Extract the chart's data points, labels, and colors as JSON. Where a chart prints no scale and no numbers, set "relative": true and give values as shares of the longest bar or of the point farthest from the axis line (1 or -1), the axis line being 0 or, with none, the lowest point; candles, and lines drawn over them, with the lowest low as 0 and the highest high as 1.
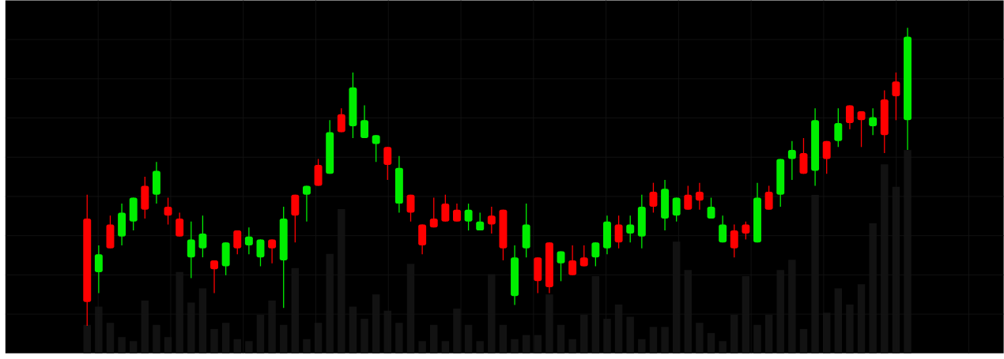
{
  "chart_data": [
    {
      "type": "candlestick",
      "relative": true,
      "grid": true,
      "categories": [
        null,
        null,
        null,
        null,
        null,
        null,
        null,
        null,
        null,
        null,
        null,
        null,
        null,
        null,
        null,
        null,
        null,
        null,
        null,
        null,
        null,
        null,
        null,
        null,
        null,
        null,
        null,
        null,
        null,
        null,
        null,
        null,
        null,
        null,
        null,
        null,
        null,
        null,
        null,
        null,
        null,
        null,
        null,
        null,
        null,
        null,
        null,
        null,
        null,
        null,
        null,
        null,
        null,
        null,
        null,
        null,
        null,
        null,
        null,
        null,
        null,
        null,
        null,
        null,
        null,
        null,
        null,
        null,
        null,
        null,
        null,
        null
      ],
      "ohlc": [
        [
          0.36,
          0.44,
          0,
          0.08
        ],
        [
          0.18,
          0.27,
          0.11,
          0.24
        ],
        [
          0.34,
          0.37,
          0.26,
          0.26
        ],
        [
          0.3,
          0.41,
          0.27,
          0.38
        ],
        [
          0.35,
          0.43,
          0.32,
          0.43
        ],
        [
          0.47,
          0.5,
          0.36,
          0.39
        ],
        [
          0.44,
          0.55,
          0.41,
          0.52
        ],
        [
          0.4,
          0.43,
          0.34,
          0.37
        ],
        [
          0.36,
          0.38,
          0.3,
          0.3
        ],
        [
          0.23,
          0.35,
          0.16,
          0.29
        ],
        [
          0.26,
          0.37,
          0.23,
          0.31
        ],
        [
          0.22,
          0.22,
          0.11,
          0.19
        ],
        [
          0.2,
          0.28,
          0.17,
          0.28
        ],
        [
          0.32,
          0.32,
          0.24,
          0.26
        ],
        [
          0.27,
          0.33,
          0.24,
          0.3
        ],
        [
          0.23,
          0.29,
          0.2,
          0.29
        ],
        [
          0.29,
          0.29,
          0.21,
          0.26
        ],
        [
          0.22,
          0.4,
          0.06,
          0.36
        ],
        [
          0.44,
          0.44,
          0.28,
          0.37
        ],
        [
          0.44,
          0.47,
          0.35,
          0.47
        ],
        [
          0.54,
          0.56,
          0.47,
          0.47
        ],
        [
          0.51,
          0.69,
          0.51,
          0.65
        ],
        [
          0.71,
          0.73,
          0.65,
          0.65
        ],
        [
          0.67,
          0.85,
          0.63,
          0.8
        ],
        [
          0.63,
          0.74,
          0.63,
          0.69
        ],
        [
          0.61,
          0.64,
          0.55,
          0.64
        ],
        [
          0.6,
          0.6,
          0.49,
          0.54
        ],
        [
          0.41,
          0.57,
          0.38,
          0.53
        ],
        [
          0.44,
          0.44,
          0.35,
          0.38
        ],
        [
          0.34,
          0.34,
          0.24,
          0.27
        ],
        [
          0.36,
          0.43,
          0.33,
          0.33
        ],
        [
          0.41,
          0.44,
          0.35,
          0.35
        ],
        [
          0.39,
          0.41,
          0.35,
          0.35
        ],
        [
          0.35,
          0.41,
          0.32,
          0.39
        ],
        [
          0.32,
          0.38,
          0.32,
          0.35
        ],
        [
          0.37,
          0.4,
          0.31,
          0.34
        ],
        [
          0.39,
          0.39,
          0.22,
          0.26
        ],
        [
          0.1,
          0.27,
          0.07,
          0.23
        ],
        [
          0.26,
          0.41,
          0.23,
          0.34
        ],
        [
          0.23,
          0.23,
          0.11,
          0.15
        ],
        [
          0.28,
          0.28,
          0.11,
          0.13
        ],
        [
          0.21,
          0.25,
          0.15,
          0.25
        ],
        [
          0.22,
          0.27,
          0.17,
          0.17
        ],
        [
          0.23,
          0.27,
          0.2,
          0.2
        ],
        [
          0.23,
          0.28,
          0.2,
          0.28
        ],
        [
          0.26,
          0.37,
          0.24,
          0.35
        ],
        [
          0.34,
          0.37,
          0.26,
          0.28
        ],
        [
          0.31,
          0.37,
          0.28,
          0.34
        ],
        [
          0.3,
          0.44,
          0.26,
          0.4
        ],
        [
          0.45,
          0.48,
          0.38,
          0.4
        ],
        [
          0.36,
          0.49,
          0.32,
          0.46
        ],
        [
          0.37,
          0.43,
          0.35,
          0.43
        ],
        [
          0.44,
          0.47,
          0.39,
          0.39
        ],
        [
          0.45,
          0.48,
          0.39,
          0.42
        ],
        [
          0.36,
          0.43,
          0.36,
          0.4
        ],
        [
          0.28,
          0.37,
          0.28,
          0.34
        ],
        [
          0.32,
          0.34,
          0.23,
          0.26
        ],
        [
          0.34,
          0.35,
          0.29,
          0.31
        ],
        [
          0.28,
          0.48,
          0.28,
          0.43
        ],
        [
          0.45,
          0.47,
          0.39,
          0.39
        ],
        [
          0.44,
          0.56,
          0.4,
          0.56
        ],
        [
          0.56,
          0.62,
          0.49,
          0.59
        ],
        [
          0.58,
          0.63,
          0.51,
          0.51
        ],
        [
          0.52,
          0.73,
          0.47,
          0.69
        ],
        [
          0.62,
          0.62,
          0.51,
          0.56
        ],
        [
          0.62,
          0.73,
          0.6,
          0.68
        ],
        [
          0.74,
          0.74,
          0.66,
          0.68
        ],
        [
          0.72,
          0.72,
          0.6,
          0.69
        ],
        [
          0.67,
          0.73,
          0.64,
          0.7
        ],
        [
          0.76,
          0.79,
          0.58,
          0.64
        ],
        [
          0.82,
          0.85,
          0.69,
          0.77
        ],
        [
          0.69,
          1.0,
          0.59,
          0.97
        ]
      ],
      "colors": [
        "#ff0000",
        "#00ee00",
        "#ff0000",
        "#00ee00",
        "#00ee00",
        "#ff0000",
        "#00ee00",
        "#ff0000",
        "#ff0000",
        "#00ee00",
        "#00ee00",
        "#ff0000",
        "#00ee00",
        "#ff0000",
        "#00ee00",
        "#00ee00",
        "#ff0000",
        "#00ee00",
        "#ff0000",
        "#00ee00",
        "#ff0000",
        "#00ee00",
        "#ff0000",
        "#00ee00",
        "#00ee00",
        "#00ee00",
        "#ff0000",
        "#00ee00",
        "#ff0000",
        "#ff0000",
        "#ff0000",
        "#ff0000",
        "#ff0000",
        "#00ee00",
        "#00ee00",
        "#ff0000",
        "#ff0000",
        "#00ee00",
        "#00ee00",
        "#ff0000",
        "#ff0000",
        "#00ee00",
        "#ff0000",
        "#ff0000",
        "#00ee00",
        "#00ee00",
        "#ff0000",
        "#00ee00",
        "#00ee00",
        "#ff0000",
        "#00ee00",
        "#00ee00",
        "#ff0000",
        "#ff0000",
        "#00ee00",
        "#00ee00",
        "#ff0000",
        "#ff0000",
        "#00ee00",
        "#ff0000",
        "#00ee00",
        "#00ee00",
        "#ff0000",
        "#00ee00",
        "#ff0000",
        "#00ee00",
        "#ff0000",
        "#ff0000",
        "#00ee00",
        "#ff0000",
        "#ff0000",
        "#00ee00"
      ]
    },
    {
      "type": "bar",
      "relative": true,
      "color": "#121212",
      "categories": [
        null,
        null,
        null,
        null,
        null,
        null,
        null,
        null,
        null,
        null,
        null,
        null,
        null,
        null,
        null,
        null,
        null,
        null,
        null,
        null,
        null,
        null,
        null,
        null,
        null,
        null,
        null,
        null,
        null,
        null,
        null,
        null,
        null,
        null,
        null,
        null,
        null,
        null,
        null,
        null,
        null,
        null,
        null,
        null,
        null,
        null,
        null,
        null,
        null,
        null,
        null,
        null,
        null,
        null,
        null,
        null,
        null,
        null,
        null,
        null,
        null,
        null,
        null,
        null,
        null,
        null,
        null,
        null,
        null,
        null,
        null,
        null
      ],
      "values": [
        0.14,
        0.23,
        0.15,
        0.08,
        0.06,
        0.26,
        0.14,
        0.08,
        0.4,
        0.25,
        0.32,
        0.12,
        0.15,
        0.07,
        0.06,
        0.19,
        0.26,
        0.14,
        0.42,
        0.07,
        0.15,
        0.49,
        0.71,
        0.23,
        0.17,
        0.29,
        0.21,
        0.15,
        0.44,
        0.06,
        0.14,
        0.06,
        0.22,
        0.14,
        0.06,
        0.39,
        0.14,
        0.07,
        0.09,
        0.09,
        0.29,
        0.14,
        0.07,
        0.19,
        0.38,
        0.17,
        0.24,
        0.18,
        0.07,
        0.13,
        0.13,
        0.55,
        0.41,
        0.15,
        0.1,
        0.06,
        0.19,
        0.38,
        0.14,
        0.19,
        0.41,
        0.46,
        0.12,
        0.78,
        0.2,
        0.32,
        0.24,
        0.34,
        0.64,
        0.93,
        0.82,
        1.0
      ]
    }
  ]
}
